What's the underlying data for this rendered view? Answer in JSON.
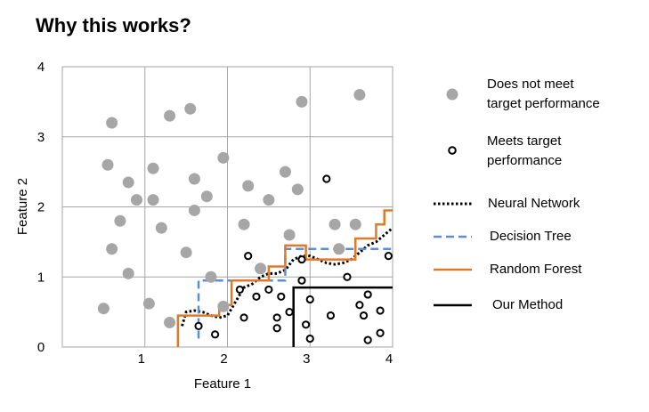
{
  "title": "Why this works?",
  "chart_data": {
    "type": "scatter",
    "xlabel": "Feature 1",
    "ylabel": "Feature 2",
    "xlim": [
      0,
      4
    ],
    "ylim": [
      0,
      4
    ],
    "x_ticks": [
      "1",
      "2",
      "3",
      "4"
    ],
    "y_ticks": [
      "0",
      "1",
      "2",
      "3",
      "4"
    ],
    "grid": true,
    "legend_position": "right",
    "series": [
      {
        "name": "Does not meet target performance",
        "marker": "filled-circle",
        "color": "#a6a6a6",
        "points": [
          [
            0.6,
            3.2
          ],
          [
            1.3,
            3.3
          ],
          [
            1.55,
            3.4
          ],
          [
            2.9,
            3.5
          ],
          [
            3.6,
            3.6
          ],
          [
            0.55,
            2.6
          ],
          [
            0.8,
            2.35
          ],
          [
            1.1,
            2.55
          ],
          [
            1.95,
            2.7
          ],
          [
            0.9,
            2.1
          ],
          [
            1.1,
            2.1
          ],
          [
            1.6,
            2.4
          ],
          [
            1.75,
            2.15
          ],
          [
            1.6,
            1.95
          ],
          [
            2.25,
            2.3
          ],
          [
            2.5,
            2.1
          ],
          [
            2.7,
            2.5
          ],
          [
            2.85,
            2.25
          ],
          [
            0.7,
            1.8
          ],
          [
            1.2,
            1.7
          ],
          [
            2.2,
            1.75
          ],
          [
            3.3,
            1.75
          ],
          [
            3.55,
            1.75
          ],
          [
            0.6,
            1.4
          ],
          [
            1.5,
            1.35
          ],
          [
            2.75,
            1.6
          ],
          [
            3.35,
            1.4
          ],
          [
            0.8,
            1.05
          ],
          [
            1.8,
            1.0
          ],
          [
            2.4,
            1.12
          ],
          [
            0.5,
            0.55
          ],
          [
            1.05,
            0.62
          ],
          [
            1.3,
            0.35
          ],
          [
            1.95,
            0.58
          ]
        ]
      },
      {
        "name": "Meets target performance",
        "marker": "open-circle",
        "color": "#000000",
        "points": [
          [
            3.2,
            2.4
          ],
          [
            2.25,
            1.3
          ],
          [
            2.9,
            1.25
          ],
          [
            3.45,
            1.0
          ],
          [
            3.95,
            1.3
          ],
          [
            2.9,
            0.95
          ],
          [
            2.15,
            0.82
          ],
          [
            2.5,
            0.82
          ],
          [
            2.65,
            0.72
          ],
          [
            2.35,
            0.72
          ],
          [
            3.0,
            0.68
          ],
          [
            3.7,
            0.75
          ],
          [
            2.2,
            0.42
          ],
          [
            2.6,
            0.42
          ],
          [
            2.75,
            0.5
          ],
          [
            3.6,
            0.6
          ],
          [
            3.65,
            0.45
          ],
          [
            3.85,
            0.52
          ],
          [
            3.25,
            0.45
          ],
          [
            2.95,
            0.32
          ],
          [
            2.6,
            0.27
          ],
          [
            1.85,
            0.18
          ],
          [
            1.65,
            0.3
          ],
          [
            3.0,
            0.12
          ],
          [
            3.7,
            0.1
          ],
          [
            3.85,
            0.2
          ]
        ]
      },
      {
        "name": "Neural Network",
        "line_style": "dotted",
        "color": "#000000",
        "points": [
          [
            1.45,
            0.3
          ],
          [
            1.5,
            0.5
          ],
          [
            1.6,
            0.52
          ],
          [
            1.7,
            0.5
          ],
          [
            1.8,
            0.45
          ],
          [
            1.9,
            0.42
          ],
          [
            2.0,
            0.45
          ],
          [
            2.1,
            0.65
          ],
          [
            2.2,
            0.85
          ],
          [
            2.3,
            0.9
          ],
          [
            2.4,
            1.0
          ],
          [
            2.5,
            1.05
          ],
          [
            2.6,
            1.05
          ],
          [
            2.7,
            1.1
          ],
          [
            2.8,
            1.25
          ],
          [
            2.9,
            1.3
          ],
          [
            3.0,
            1.3
          ],
          [
            3.1,
            1.25
          ],
          [
            3.2,
            1.2
          ],
          [
            3.3,
            1.18
          ],
          [
            3.4,
            1.2
          ],
          [
            3.5,
            1.25
          ],
          [
            3.6,
            1.35
          ],
          [
            3.7,
            1.45
          ],
          [
            3.8,
            1.5
          ],
          [
            3.9,
            1.6
          ],
          [
            4.0,
            1.7
          ]
        ]
      },
      {
        "name": "Decision Tree",
        "line_style": "dashed",
        "color": "#5b8fd0",
        "points": [
          [
            1.65,
            0.12
          ],
          [
            1.65,
            0.95
          ],
          [
            2.7,
            0.95
          ],
          [
            2.7,
            1.4
          ],
          [
            4.0,
            1.4
          ]
        ]
      },
      {
        "name": "Random Forest",
        "line_style": "solid",
        "color": "#e07a2a",
        "points": [
          [
            1.4,
            0
          ],
          [
            1.4,
            0.45
          ],
          [
            1.9,
            0.45
          ],
          [
            1.9,
            0.6
          ],
          [
            2.05,
            0.6
          ],
          [
            2.05,
            0.95
          ],
          [
            2.5,
            0.95
          ],
          [
            2.5,
            1.15
          ],
          [
            2.7,
            1.15
          ],
          [
            2.7,
            1.45
          ],
          [
            2.95,
            1.45
          ],
          [
            2.95,
            1.25
          ],
          [
            3.1,
            1.25
          ],
          [
            3.1,
            1.25
          ],
          [
            3.55,
            1.25
          ],
          [
            3.55,
            1.55
          ],
          [
            3.8,
            1.55
          ],
          [
            3.8,
            1.75
          ],
          [
            3.9,
            1.75
          ],
          [
            3.9,
            1.95
          ],
          [
            4.0,
            1.95
          ]
        ]
      },
      {
        "name": "Our Method",
        "line_style": "solid",
        "color": "#000000",
        "points": [
          [
            2.8,
            0
          ],
          [
            2.8,
            0.85
          ],
          [
            4.0,
            0.85
          ]
        ]
      }
    ]
  },
  "legend": [
    {
      "label_lines": [
        "Does not meet",
        "target performance"
      ]
    },
    {
      "label_lines": [
        "Meets target",
        "performance"
      ]
    },
    {
      "label_lines": [
        "Neural Network"
      ]
    },
    {
      "label_lines": [
        "Decision Tree"
      ]
    },
    {
      "label_lines": [
        "Random Forest"
      ]
    },
    {
      "label_lines": [
        "Our Method"
      ]
    }
  ]
}
